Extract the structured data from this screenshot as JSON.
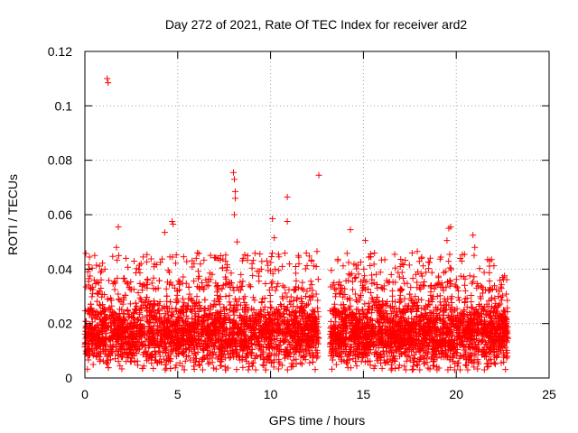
{
  "chart_data": {
    "type": "scatter",
    "title": "Day 272 of 2021, Rate Of TEC Index for receiver ard2",
    "xlabel": "GPS time / hours",
    "ylabel": "ROTI / TECUs",
    "xlim": [
      0,
      25
    ],
    "ylim": [
      0,
      0.12
    ],
    "xticks": [
      0,
      5,
      10,
      15,
      20,
      25
    ],
    "xtick_labels": [
      "0",
      "5",
      "10",
      "15",
      "20",
      "25"
    ],
    "yticks": [
      0,
      0.02,
      0.04,
      0.06,
      0.08,
      0.1,
      0.12
    ],
    "ytick_labels": [
      "0",
      "0.02",
      "0.04",
      "0.06",
      "0.08",
      "0.1",
      "0.12"
    ],
    "grid": true,
    "marker": "+",
    "color": "#ff0000",
    "coverage": [
      {
        "name": "segment-1",
        "x_start": 0.0,
        "x_end": 12.6
      },
      {
        "name": "segment-2",
        "x_start": 13.2,
        "x_end": 22.8
      }
    ],
    "series": [
      {
        "name": "ROTI",
        "points": [
          {
            "x": 1.2,
            "y": 0.11
          },
          {
            "x": 1.25,
            "y": 0.1085
          },
          {
            "x": 1.8,
            "y": 0.0555
          },
          {
            "x": 1.7,
            "y": 0.048
          },
          {
            "x": 4.3,
            "y": 0.0535
          },
          {
            "x": 4.7,
            "y": 0.0575
          },
          {
            "x": 4.75,
            "y": 0.0565
          },
          {
            "x": 8.0,
            "y": 0.0755
          },
          {
            "x": 8.05,
            "y": 0.073
          },
          {
            "x": 8.1,
            "y": 0.0685
          },
          {
            "x": 8.1,
            "y": 0.066
          },
          {
            "x": 8.05,
            "y": 0.06
          },
          {
            "x": 8.2,
            "y": 0.05
          },
          {
            "x": 10.1,
            "y": 0.0585
          },
          {
            "x": 10.2,
            "y": 0.0515
          },
          {
            "x": 10.9,
            "y": 0.0665
          },
          {
            "x": 10.9,
            "y": 0.0575
          },
          {
            "x": 12.5,
            "y": 0.0465
          },
          {
            "x": 12.6,
            "y": 0.0745
          },
          {
            "x": 14.3,
            "y": 0.0545
          },
          {
            "x": 15.1,
            "y": 0.0505
          },
          {
            "x": 15.4,
            "y": 0.0445
          },
          {
            "x": 17.9,
            "y": 0.0465
          },
          {
            "x": 19.7,
            "y": 0.0555
          },
          {
            "x": 19.6,
            "y": 0.055
          },
          {
            "x": 19.5,
            "y": 0.0505
          },
          {
            "x": 20.9,
            "y": 0.0525
          },
          {
            "x": 21.0,
            "y": 0.048
          },
          {
            "x": 21.9,
            "y": 0.0435
          },
          {
            "x": 0.5,
            "y": 0.036
          },
          {
            "x": 2.9,
            "y": 0.04
          },
          {
            "x": 6.3,
            "y": 0.035
          },
          {
            "x": 9.0,
            "y": 0.042
          },
          {
            "x": 11.5,
            "y": 0.045
          },
          {
            "x": 16.5,
            "y": 0.038
          },
          {
            "x": 18.6,
            "y": 0.044
          },
          {
            "x": 22.5,
            "y": 0.037
          }
        ],
        "dense_band": {
          "y_min": 0.003,
          "y_max": 0.036,
          "center": 0.016
        }
      }
    ]
  }
}
